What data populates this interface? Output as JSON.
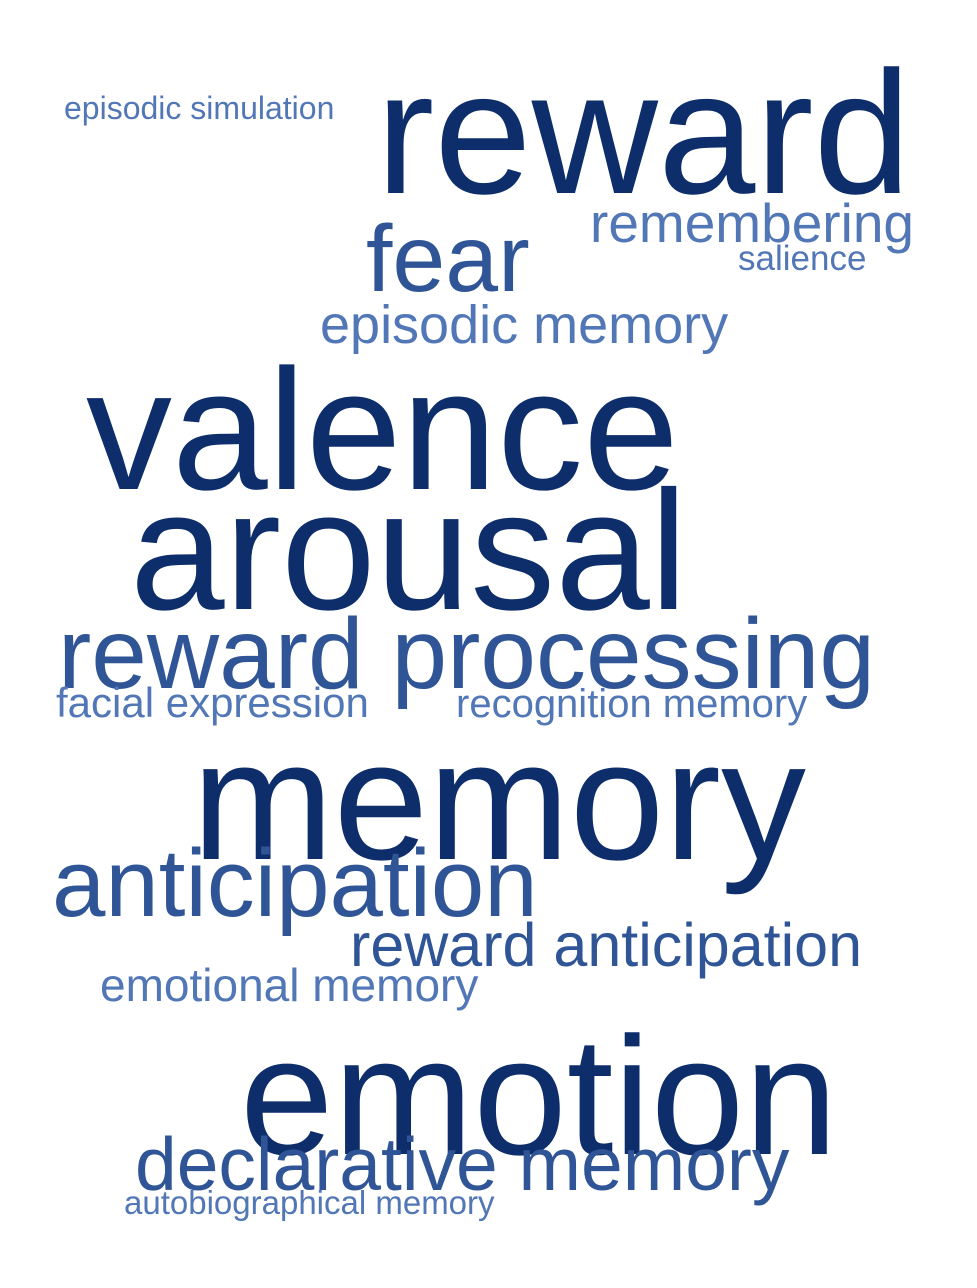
{
  "words": {
    "reward": "reward",
    "episodic_simulation": "episodic simulation",
    "remembering": "remembering",
    "salience": "salience",
    "fear": "fear",
    "episodic_memory": "episodic memory",
    "valence": "valence",
    "arousal": "arousal",
    "reward_processing": "reward processing",
    "facial_expression": "facial expression",
    "recognition_memory": "recognition memory",
    "memory": "memory",
    "anticipation": "anticipation",
    "reward_anticipation": "reward anticipation",
    "emotional_memory": "emotional memory",
    "emotion": "emotion",
    "declarative_memory": "declarative memory",
    "autobiographical_memory": "autobiographical memory"
  },
  "colors": {
    "dark_navy": "#0d2d6b",
    "medium_blue": "#2f5596",
    "light_blue": "#5277b6",
    "background": "#ffffff"
  }
}
